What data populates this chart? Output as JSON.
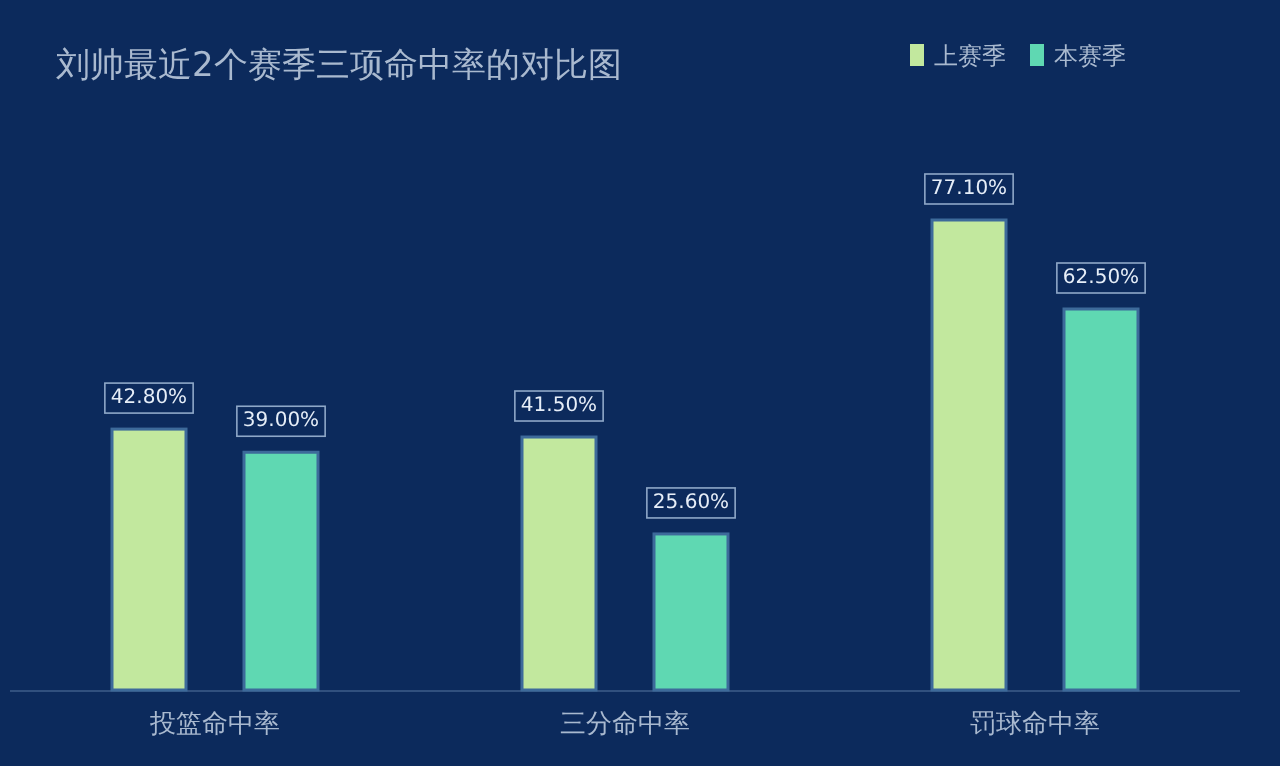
{
  "chart_data": {
    "type": "bar",
    "title": "刘帅最近2个赛季三项命中率的对比图",
    "categories": [
      "投篮命中率",
      "三分命中率",
      "罚球命中率"
    ],
    "legend": "top right",
    "series": [
      {
        "name": "上赛季",
        "color": "#c2e89e",
        "values": [
          42.8,
          41.5,
          77.1
        ],
        "value_labels": [
          "42.80%",
          "41.50%",
          "77.10%"
        ]
      },
      {
        "name": "本赛季",
        "color": "#5fd8b2",
        "values": [
          39.0,
          25.6,
          62.5
        ],
        "value_labels": [
          "39.00%",
          "25.60%",
          "62.50%"
        ]
      }
    ]
  }
}
